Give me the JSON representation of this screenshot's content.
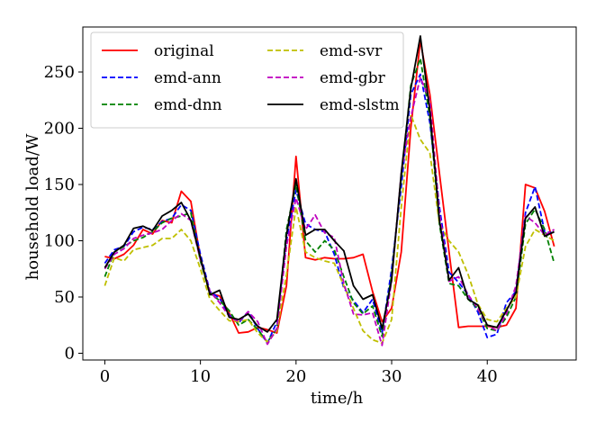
{
  "chart_data": {
    "type": "line",
    "title": "",
    "xlabel": "time/h",
    "ylabel": "household load/W",
    "xlim": [
      -2.3,
      49.3
    ],
    "ylim": [
      -6,
      290
    ],
    "xticks": [
      0,
      10,
      20,
      30,
      40
    ],
    "yticks": [
      0,
      50,
      100,
      150,
      200,
      250
    ],
    "legend_position": "top-left",
    "legend_columns": 2,
    "series": [
      {
        "name": "original",
        "color": "#ff0000",
        "dash": "solid",
        "values": [
          86,
          84,
          88,
          96,
          110,
          106,
          118,
          116,
          144,
          135,
          85,
          53,
          51,
          36,
          18,
          19,
          23,
          21,
          18,
          60,
          175,
          85,
          83,
          85,
          84,
          84,
          85,
          88,
          55,
          28,
          40,
          90,
          200,
          278,
          230,
          160,
          90,
          23,
          24,
          24,
          24,
          23,
          25,
          40,
          150,
          147,
          126,
          95
        ]
      },
      {
        "name": "emd-ann",
        "color": "#0000ff",
        "dash": "dashed",
        "values": [
          80,
          92,
          95,
          108,
          112,
          110,
          117,
          120,
          132,
          127,
          88,
          55,
          49,
          34,
          27,
          37,
          22,
          9,
          28,
          100,
          145,
          115,
          110,
          108,
          88,
          58,
          47,
          36,
          48,
          18,
          75,
          148,
          230,
          248,
          205,
          130,
          72,
          63,
          52,
          37,
          14,
          17,
          45,
          55,
          125,
          148,
          108,
          107
        ]
      },
      {
        "name": "emd-dnn",
        "color": "#008000",
        "dash": "dashed",
        "values": [
          68,
          90,
          95,
          100,
          103,
          108,
          116,
          120,
          122,
          125,
          82,
          53,
          47,
          38,
          25,
          30,
          21,
          10,
          22,
          110,
          150,
          100,
          90,
          100,
          92,
          68,
          45,
          35,
          42,
          15,
          70,
          155,
          238,
          262,
          210,
          115,
          62,
          60,
          48,
          40,
          22,
          20,
          32,
          50,
          115,
          128,
          110,
          80
        ]
      },
      {
        "name": "emd-svr",
        "color": "#bfbf00",
        "dash": "dashed",
        "values": [
          60,
          85,
          82,
          92,
          94,
          96,
          102,
          102,
          110,
          100,
          75,
          48,
          38,
          29,
          28,
          30,
          18,
          10,
          20,
          70,
          130,
          90,
          85,
          82,
          80,
          60,
          40,
          20,
          12,
          9,
          30,
          130,
          212,
          190,
          178,
          115,
          100,
          90,
          70,
          44,
          30,
          28,
          40,
          50,
          95,
          110,
          105,
          100
        ]
      },
      {
        "name": "emd-gbr",
        "color": "#bf00bf",
        "dash": "dashed",
        "values": [
          75,
          88,
          93,
          102,
          105,
          107,
          110,
          118,
          124,
          118,
          83,
          55,
          45,
          33,
          28,
          37,
          28,
          8,
          22,
          95,
          138,
          110,
          123,
          107,
          103,
          62,
          35,
          34,
          36,
          7,
          65,
          160,
          210,
          245,
          225,
          125,
          64,
          68,
          52,
          40,
          25,
          20,
          35,
          60,
          122,
          116,
          105,
          110
        ]
      },
      {
        "name": "emd-slstm",
        "color": "#000000",
        "dash": "solid",
        "values": [
          76,
          90,
          96,
          111,
          113,
          109,
          122,
          127,
          134,
          118,
          85,
          52,
          56,
          32,
          30,
          35,
          24,
          19,
          30,
          105,
          155,
          105,
          110,
          110,
          100,
          91,
          60,
          48,
          52,
          22,
          65,
          160,
          235,
          282,
          215,
          118,
          65,
          76,
          48,
          43,
          25,
          23,
          38,
          54,
          120,
          130,
          104,
          108
        ]
      }
    ]
  }
}
